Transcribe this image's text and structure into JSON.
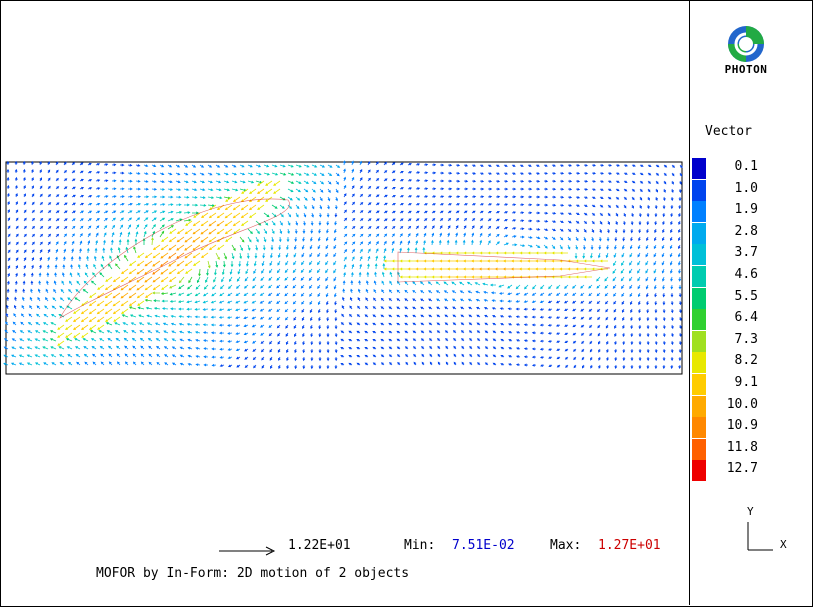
{
  "brand": {
    "name": "PHOTON"
  },
  "legend": {
    "title": "Vector",
    "entries": [
      {
        "label": "0.1",
        "color": "#0000cc"
      },
      {
        "label": "1.0",
        "color": "#0044ee"
      },
      {
        "label": "1.9",
        "color": "#0080ff"
      },
      {
        "label": "2.8",
        "color": "#00aaee"
      },
      {
        "label": "3.7",
        "color": "#00c0d8"
      },
      {
        "label": "4.6",
        "color": "#00ccb0"
      },
      {
        "label": "5.5",
        "color": "#00cc70"
      },
      {
        "label": "6.4",
        "color": "#30d030"
      },
      {
        "label": "7.3",
        "color": "#a0e020"
      },
      {
        "label": "8.2",
        "color": "#e8e800"
      },
      {
        "label": "9.1",
        "color": "#ffcc00"
      },
      {
        "label": "10.0",
        "color": "#ffaa00"
      },
      {
        "label": "10.9",
        "color": "#ff8800"
      },
      {
        "label": "11.8",
        "color": "#ff6000"
      },
      {
        "label": "12.7",
        "color": "#ee0000"
      }
    ]
  },
  "axes": {
    "y": "Y",
    "x": "X"
  },
  "stats": {
    "reference_value": "1.22E+01",
    "min_label": "Min:",
    "min_value": "7.51E-02",
    "max_label": "Max:",
    "max_value": "1.27E+01"
  },
  "caption": "MOFOR by In-Form: 2D motion of 2 objects"
}
